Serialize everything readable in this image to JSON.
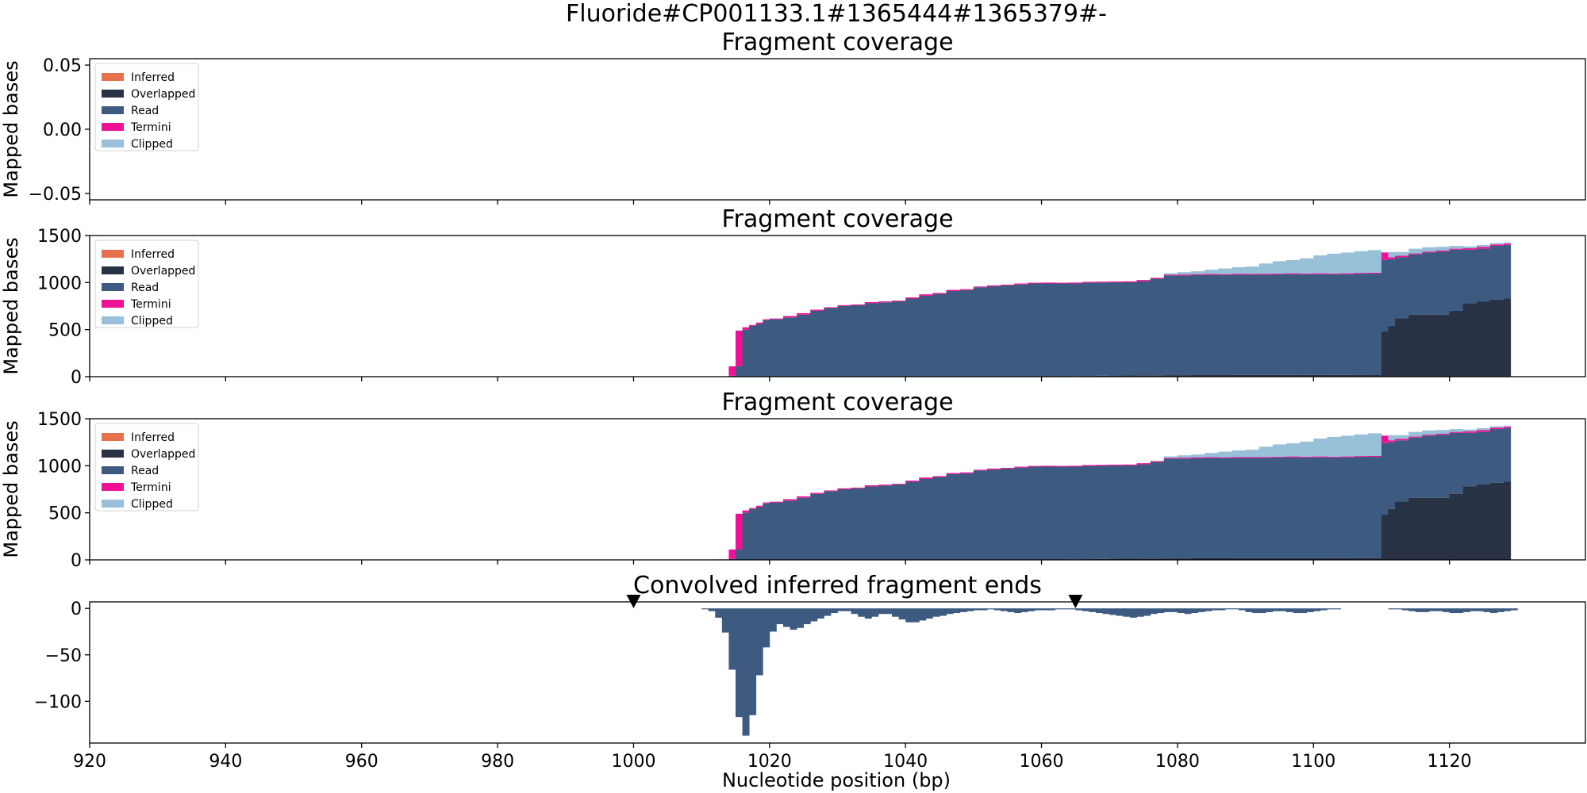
{
  "figure_title": "Fluoride#CP001133.1#1365444#1365379#-",
  "xlabel": "Nucleotide position (bp)",
  "colors": {
    "Inferred": "#e8704f",
    "Overlapped": "#283244",
    "Read": "#3d5a80",
    "Termini": "#ee1197",
    "Clipped": "#98c1d9"
  },
  "chart_data": [
    {
      "type": "area",
      "title": "Fragment coverage",
      "ylabel": "Mapped bases",
      "xlim": [
        920,
        1140
      ],
      "ylim": [
        -0.055,
        0.055
      ],
      "yticks": [
        "0.05",
        "0.00",
        "−0.05"
      ],
      "ytick_values": [
        0.05,
        0.0,
        -0.05
      ],
      "xticks": [
        920,
        940,
        960,
        980,
        1000,
        1020,
        1040,
        1060,
        1080,
        1100,
        1120
      ],
      "legend": [
        "Inferred",
        "Overlapped",
        "Read",
        "Termini",
        "Clipped"
      ],
      "legend_position": "top-left",
      "series": []
    },
    {
      "type": "area",
      "title": "Fragment coverage",
      "ylabel": "Mapped bases",
      "xlim": [
        920,
        1140
      ],
      "ylim": [
        0,
        1500
      ],
      "yticks": [
        "1500",
        "1000",
        "500",
        "0"
      ],
      "ytick_values": [
        1500,
        1000,
        500,
        0
      ],
      "xticks": [
        920,
        940,
        960,
        980,
        1000,
        1020,
        1040,
        1060,
        1080,
        1100,
        1120
      ],
      "legend": [
        "Inferred",
        "Overlapped",
        "Read",
        "Termini",
        "Clipped"
      ],
      "legend_position": "top-left",
      "stacked": true,
      "x": [
        1014,
        1015,
        1016,
        1017,
        1018,
        1019,
        1020,
        1022,
        1024,
        1026,
        1028,
        1030,
        1032,
        1034,
        1036,
        1038,
        1040,
        1042,
        1044,
        1046,
        1048,
        1050,
        1052,
        1054,
        1056,
        1058,
        1060,
        1062,
        1064,
        1066,
        1068,
        1070,
        1072,
        1074,
        1076,
        1078,
        1080,
        1082,
        1084,
        1086,
        1088,
        1090,
        1092,
        1094,
        1096,
        1098,
        1100,
        1102,
        1104,
        1106,
        1108,
        1110,
        1111,
        1112,
        1114,
        1116,
        1118,
        1120,
        1122,
        1124,
        1126,
        1128
      ],
      "series": [
        {
          "name": "Overlapped",
          "values": [
            0,
            0,
            0,
            0,
            0,
            0,
            0,
            0,
            0,
            0,
            0,
            0,
            0,
            0,
            0,
            0,
            0,
            0,
            0,
            0,
            0,
            0,
            0,
            0,
            0,
            0,
            0,
            0,
            5,
            8,
            10,
            12,
            13,
            15,
            15,
            16,
            16,
            17,
            17,
            17,
            18,
            18,
            18,
            19,
            19,
            19,
            19,
            19,
            19,
            20,
            20,
            480,
            540,
            620,
            660,
            660,
            660,
            700,
            780,
            800,
            820,
            830
          ]
        },
        {
          "name": "Read",
          "values": [
            10,
            110,
            500,
            540,
            560,
            600,
            610,
            630,
            660,
            700,
            730,
            750,
            760,
            780,
            790,
            800,
            830,
            860,
            880,
            910,
            920,
            950,
            960,
            970,
            980,
            990,
            990,
            990,
            985,
            990,
            990,
            990,
            990,
            1000,
            1025,
            1060,
            1060,
            1065,
            1065,
            1065,
            1065,
            1065,
            1065,
            1070,
            1070,
            1070,
            1070,
            1070,
            1070,
            1075,
            1075,
            760,
            710,
            650,
            640,
            660,
            670,
            650,
            570,
            560,
            570,
            570
          ]
        },
        {
          "name": "Termini",
          "values": [
            100,
            380,
            25,
            10,
            15,
            10,
            8,
            15,
            15,
            12,
            8,
            10,
            8,
            12,
            10,
            8,
            12,
            15,
            10,
            12,
            10,
            8,
            10,
            8,
            10,
            8,
            10,
            8,
            10,
            10,
            10,
            10,
            10,
            12,
            10,
            8,
            10,
            8,
            10,
            8,
            10,
            8,
            10,
            8,
            10,
            8,
            10,
            8,
            10,
            8,
            10,
            80,
            20,
            15,
            10,
            10,
            10,
            10,
            15,
            20,
            15,
            15
          ]
        },
        {
          "name": "Clipped",
          "values": [
            0,
            0,
            0,
            0,
            0,
            0,
            0,
            0,
            0,
            0,
            0,
            0,
            0,
            0,
            0,
            0,
            0,
            0,
            0,
            0,
            0,
            0,
            0,
            0,
            0,
            0,
            0,
            0,
            0,
            0,
            0,
            0,
            0,
            0,
            0,
            15,
            25,
            30,
            45,
            60,
            70,
            80,
            110,
            130,
            140,
            160,
            190,
            210,
            220,
            230,
            240,
            0,
            55,
            40,
            50,
            45,
            40,
            30,
            20,
            20,
            15,
            10
          ]
        },
        {
          "name": "Inferred",
          "values": [
            0,
            0,
            0,
            0,
            0,
            0,
            0,
            0,
            0,
            0,
            0,
            0,
            0,
            0,
            0,
            0,
            0,
            0,
            0,
            0,
            0,
            0,
            0,
            0,
            0,
            0,
            0,
            0,
            0,
            0,
            0,
            0,
            0,
            0,
            0,
            0,
            0,
            0,
            0,
            0,
            0,
            0,
            0,
            0,
            0,
            0,
            0,
            0,
            0,
            0,
            0,
            0,
            0,
            0,
            0,
            0,
            0,
            0,
            0,
            0,
            0,
            0
          ]
        }
      ]
    },
    {
      "type": "area",
      "title": "Fragment coverage",
      "ylabel": "Mapped bases",
      "xlim": [
        920,
        1140
      ],
      "ylim": [
        0,
        1500
      ],
      "yticks": [
        "1500",
        "1000",
        "500",
        "0"
      ],
      "ytick_values": [
        1500,
        1000,
        500,
        0
      ],
      "xticks": [
        920,
        940,
        960,
        980,
        1000,
        1020,
        1040,
        1060,
        1080,
        1100,
        1120
      ],
      "legend": [
        "Inferred",
        "Overlapped",
        "Read",
        "Termini",
        "Clipped"
      ],
      "legend_position": "top-left",
      "stacked": true,
      "x": [
        1012,
        1014,
        1015,
        1016,
        1017,
        1018,
        1019,
        1020,
        1022,
        1024,
        1026,
        1028,
        1030,
        1032,
        1034,
        1036,
        1038,
        1040,
        1042,
        1044,
        1046,
        1048,
        1050,
        1052,
        1054,
        1056,
        1058,
        1060,
        1062,
        1064,
        1066,
        1068,
        1070,
        1072,
        1074,
        1076,
        1078,
        1080,
        1082,
        1084,
        1086,
        1088,
        1090,
        1092,
        1094,
        1096,
        1098,
        1100,
        1102,
        1104,
        1106,
        1108,
        1110,
        1111,
        1112,
        1114,
        1116,
        1118,
        1120,
        1122,
        1124,
        1126,
        1128
      ],
      "series": [
        {
          "name": "Overlapped",
          "values": [
            0,
            0,
            0,
            0,
            0,
            0,
            0,
            0,
            0,
            0,
            0,
            0,
            0,
            0,
            0,
            0,
            0,
            0,
            0,
            0,
            0,
            0,
            0,
            0,
            0,
            0,
            0,
            0,
            0,
            5,
            8,
            10,
            12,
            13,
            15,
            15,
            16,
            16,
            17,
            17,
            17,
            18,
            18,
            18,
            19,
            19,
            19,
            19,
            19,
            19,
            20,
            20,
            480,
            540,
            620,
            660,
            660,
            660,
            700,
            780,
            800,
            820,
            830
          ]
        },
        {
          "name": "Read",
          "values": [
            0,
            10,
            110,
            500,
            540,
            560,
            600,
            610,
            630,
            660,
            700,
            730,
            750,
            760,
            780,
            790,
            800,
            830,
            860,
            880,
            910,
            920,
            950,
            960,
            970,
            980,
            990,
            990,
            990,
            985,
            990,
            990,
            990,
            990,
            1000,
            1025,
            1060,
            1060,
            1065,
            1065,
            1065,
            1065,
            1065,
            1065,
            1070,
            1070,
            1070,
            1070,
            1070,
            1070,
            1075,
            1075,
            760,
            710,
            650,
            640,
            660,
            670,
            650,
            570,
            560,
            570,
            570
          ]
        },
        {
          "name": "Termini",
          "values": [
            5,
            100,
            380,
            25,
            10,
            15,
            10,
            8,
            15,
            15,
            12,
            8,
            10,
            8,
            12,
            10,
            8,
            12,
            15,
            10,
            12,
            10,
            8,
            10,
            8,
            10,
            8,
            10,
            8,
            10,
            10,
            10,
            10,
            10,
            12,
            10,
            8,
            10,
            8,
            10,
            8,
            10,
            8,
            10,
            8,
            10,
            8,
            10,
            8,
            10,
            8,
            10,
            80,
            20,
            15,
            10,
            10,
            10,
            10,
            15,
            20,
            15,
            15
          ]
        },
        {
          "name": "Clipped",
          "values": [
            0,
            0,
            0,
            0,
            0,
            0,
            0,
            0,
            0,
            0,
            0,
            0,
            0,
            0,
            0,
            0,
            0,
            0,
            0,
            0,
            0,
            0,
            0,
            0,
            0,
            0,
            0,
            0,
            0,
            0,
            0,
            0,
            0,
            0,
            0,
            0,
            15,
            25,
            30,
            45,
            60,
            70,
            80,
            110,
            130,
            140,
            160,
            190,
            210,
            220,
            230,
            240,
            0,
            55,
            40,
            50,
            45,
            40,
            30,
            20,
            20,
            15,
            10
          ]
        },
        {
          "name": "Inferred",
          "values": [
            0,
            0,
            0,
            0,
            0,
            0,
            0,
            0,
            0,
            0,
            0,
            0,
            0,
            0,
            0,
            0,
            0,
            0,
            0,
            0,
            0,
            0,
            0,
            0,
            0,
            0,
            0,
            0,
            0,
            0,
            0,
            0,
            0,
            0,
            0,
            0,
            0,
            0,
            0,
            0,
            0,
            0,
            0,
            0,
            0,
            0,
            0,
            0,
            0,
            0,
            0,
            0,
            0,
            0,
            0,
            0,
            0,
            0,
            0,
            0,
            0,
            0,
            0
          ]
        }
      ]
    },
    {
      "type": "bar",
      "title": "Convolved inferred fragment ends",
      "ylabel": "",
      "xlim": [
        920,
        1140
      ],
      "ylim": [
        -145,
        7
      ],
      "yticks": [
        "0",
        "−50",
        "−100"
      ],
      "ytick_values": [
        0,
        -50,
        -100
      ],
      "xticks": [
        920,
        940,
        960,
        980,
        1000,
        1020,
        1040,
        1060,
        1080,
        1100,
        1120
      ],
      "xtick_labels": [
        "920",
        "940",
        "960",
        "980",
        "1000",
        "1020",
        "1040",
        "1060",
        "1080",
        "1100",
        "1120"
      ],
      "markers_x": [
        1000,
        1065
      ],
      "x": [
        1010,
        1011,
        1012,
        1013,
        1014,
        1015,
        1016,
        1017,
        1018,
        1019,
        1020,
        1021,
        1022,
        1023,
        1024,
        1025,
        1026,
        1027,
        1028,
        1029,
        1030,
        1031,
        1032,
        1033,
        1034,
        1035,
        1036,
        1037,
        1038,
        1039,
        1040,
        1041,
        1042,
        1043,
        1044,
        1045,
        1046,
        1047,
        1048,
        1049,
        1050,
        1051,
        1052,
        1053,
        1054,
        1055,
        1056,
        1057,
        1058,
        1059,
        1060,
        1061,
        1062,
        1063,
        1064,
        1065,
        1066,
        1067,
        1068,
        1069,
        1070,
        1071,
        1072,
        1073,
        1074,
        1075,
        1076,
        1077,
        1078,
        1079,
        1080,
        1081,
        1082,
        1083,
        1084,
        1085,
        1086,
        1087,
        1088,
        1089,
        1090,
        1091,
        1092,
        1093,
        1094,
        1095,
        1096,
        1097,
        1098,
        1099,
        1100,
        1101,
        1102,
        1103,
        1104,
        1111,
        1112,
        1113,
        1114,
        1115,
        1116,
        1117,
        1118,
        1119,
        1120,
        1121,
        1122,
        1123,
        1124,
        1125,
        1126,
        1127,
        1128,
        1129
      ],
      "values": [
        -1,
        -3,
        -10,
        -26,
        -66,
        -117,
        -137,
        -115,
        -72,
        -42,
        -25,
        -17,
        -20,
        -23,
        -21,
        -17,
        -14,
        -11,
        -8,
        -5,
        -3,
        -3,
        -6,
        -9,
        -11,
        -9,
        -6,
        -6,
        -9,
        -12,
        -15,
        -15,
        -13,
        -11,
        -9,
        -8,
        -6,
        -5,
        -4,
        -3,
        -2,
        -2,
        -1,
        -2,
        -3,
        -4,
        -5,
        -4,
        -3,
        -2,
        -2,
        -2,
        -1,
        -1,
        -1,
        -2,
        -3,
        -4,
        -5,
        -6,
        -7,
        -8,
        -9,
        -10,
        -9,
        -8,
        -6,
        -5,
        -4,
        -4,
        -5,
        -6,
        -5,
        -4,
        -3,
        -2,
        -2,
        -1,
        -1,
        -2,
        -4,
        -5,
        -5,
        -4,
        -3,
        -3,
        -4,
        -5,
        -5,
        -4,
        -3,
        -2,
        -1,
        -1,
        0,
        -1,
        -1,
        -2,
        -3,
        -4,
        -4,
        -3,
        -3,
        -4,
        -5,
        -5,
        -4,
        -3,
        -3,
        -4,
        -5,
        -4,
        -3,
        -2
      ]
    }
  ]
}
